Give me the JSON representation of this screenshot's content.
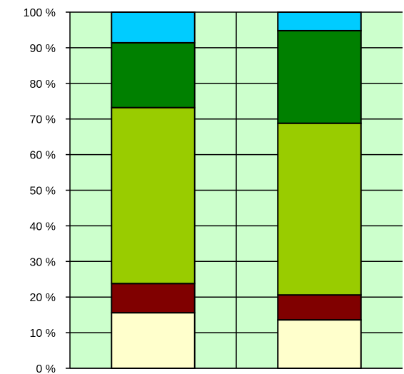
{
  "chart_data": {
    "type": "bar",
    "stacked": true,
    "percent": true,
    "categories": [
      "",
      ""
    ],
    "ylim": [
      0,
      100
    ],
    "y_ticks": [
      0,
      10,
      20,
      30,
      40,
      50,
      60,
      70,
      80,
      90,
      100
    ],
    "y_tick_labels": [
      "0 %",
      "10 %",
      "20 %",
      "30 %",
      "40 %",
      "50 %",
      "60 %",
      "70 %",
      "80 %",
      "90 %",
      "100 %"
    ],
    "grid": true,
    "legend": "none",
    "colors": {
      "plot_background": "#ccffcc",
      "grid": "#000000",
      "axis": "#000000"
    },
    "series": [
      {
        "color": "#ffffcc",
        "values": [
          15.6,
          13.6
        ]
      },
      {
        "color": "#800000",
        "values": [
          8.2,
          7.0
        ]
      },
      {
        "color": "#99cc00",
        "values": [
          49.4,
          48.2
        ]
      },
      {
        "color": "#008000",
        "values": [
          18.2,
          26.0
        ]
      },
      {
        "color": "#00ccff",
        "values": [
          8.6,
          5.2
        ]
      }
    ]
  }
}
